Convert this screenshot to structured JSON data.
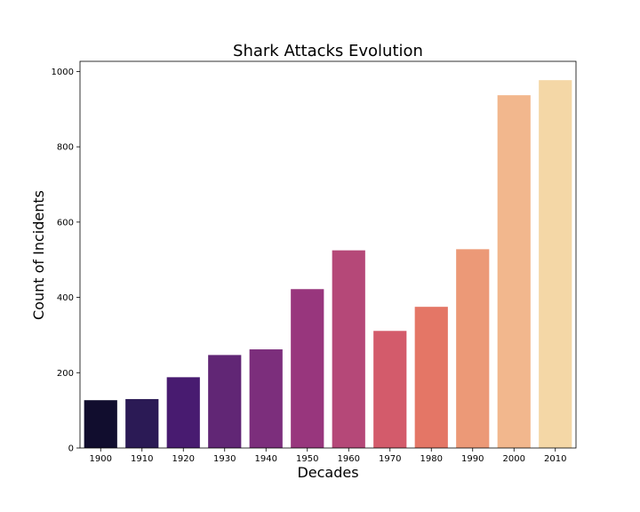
{
  "chart_data": {
    "type": "bar",
    "title": "Shark Attacks Evolution",
    "xlabel": "Decades",
    "ylabel": "Count of Incidents",
    "categories": [
      "1900",
      "1910",
      "1920",
      "1930",
      "1940",
      "1950",
      "1960",
      "1970",
      "1980",
      "1990",
      "2000",
      "2010"
    ],
    "values": [
      127,
      130,
      188,
      247,
      262,
      422,
      525,
      311,
      375,
      528,
      937,
      977
    ],
    "ylim": [
      0,
      1027
    ],
    "yticks": [
      0,
      200,
      400,
      600,
      800,
      1000
    ],
    "grid": false,
    "colors": [
      "#110d2e",
      "#2b1a55",
      "#481b70",
      "#612675",
      "#7c2e7c",
      "#98367d",
      "#b54878",
      "#d35b6b",
      "#e47666",
      "#ec9977",
      "#f2b78d",
      "#f4d7a6"
    ]
  }
}
